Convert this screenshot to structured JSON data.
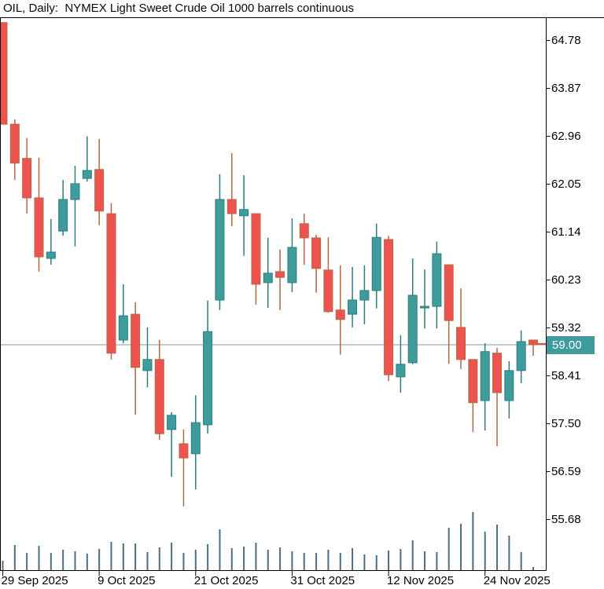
{
  "window": {
    "title": "OIL, Daily:  NYMEX Light Sweet Crude Oil 1000 barrels continuous"
  },
  "chart_data": {
    "type": "candlestick",
    "symbol": "OIL",
    "timeframe": "Daily",
    "title": "OIL, Daily:  NYMEX Light Sweet Crude Oil 1000 barrels continuous",
    "legend_position": "none",
    "grid": false,
    "ylim": [
      54.72,
      65.22
    ],
    "y_axis": {
      "side": "right",
      "ticks": [
        "64.78",
        "63.87",
        "62.96",
        "62.05",
        "61.14",
        "60.23",
        "59.32",
        "58.41",
        "57.50",
        "56.59",
        "55.68"
      ],
      "current_price": "59.00"
    },
    "x_axis": {
      "labels": [
        {
          "text": "29 Sep 2025",
          "index": 0
        },
        {
          "text": "9 Oct 2025",
          "index": 8
        },
        {
          "text": "21 Oct 2025",
          "index": 16
        },
        {
          "text": "31 Oct 2025",
          "index": 24
        },
        {
          "text": "12 Nov 2025",
          "index": 32
        },
        {
          "text": "24 Nov 2025",
          "index": 40
        }
      ]
    },
    "candles": [
      {
        "date": "29 Sep",
        "open": 65.12,
        "high": 65.12,
        "low": 63.19,
        "close": 63.19
      },
      {
        "date": "30 Sep",
        "open": 63.19,
        "high": 63.28,
        "low": 62.13,
        "close": 62.45
      },
      {
        "date": "1 Oct",
        "open": 62.54,
        "high": 62.93,
        "low": 61.49,
        "close": 61.79
      },
      {
        "date": "2 Oct",
        "open": 61.79,
        "high": 62.55,
        "low": 60.39,
        "close": 60.67
      },
      {
        "date": "3 Oct",
        "open": 60.64,
        "high": 61.39,
        "low": 60.52,
        "close": 60.76
      },
      {
        "date": "6 Oct",
        "open": 61.16,
        "high": 62.13,
        "low": 61.07,
        "close": 61.76
      },
      {
        "date": "7 Oct",
        "open": 61.76,
        "high": 62.4,
        "low": 60.87,
        "close": 62.06
      },
      {
        "date": "8 Oct",
        "open": 62.16,
        "high": 62.96,
        "low": 62.1,
        "close": 62.31
      },
      {
        "date": "9 Oct",
        "open": 62.33,
        "high": 62.91,
        "low": 61.27,
        "close": 61.54
      },
      {
        "date": "10 Oct",
        "open": 61.49,
        "high": 61.69,
        "low": 58.72,
        "close": 58.84
      },
      {
        "date": "13 Oct",
        "open": 59.09,
        "high": 60.15,
        "low": 59.03,
        "close": 59.55
      },
      {
        "date": "14 Oct",
        "open": 59.58,
        "high": 59.81,
        "low": 57.67,
        "close": 58.57
      },
      {
        "date": "15 Oct",
        "open": 58.51,
        "high": 59.33,
        "low": 58.19,
        "close": 58.72
      },
      {
        "date": "16 Oct",
        "open": 58.72,
        "high": 59.09,
        "low": 57.19,
        "close": 57.31
      },
      {
        "date": "17 Oct",
        "open": 57.39,
        "high": 57.72,
        "low": 56.49,
        "close": 57.66
      },
      {
        "date": "20 Oct",
        "open": 57.12,
        "high": 57.39,
        "low": 55.93,
        "close": 56.85
      },
      {
        "date": "21 Oct",
        "open": 56.93,
        "high": 58.04,
        "low": 56.25,
        "close": 57.52
      },
      {
        "date": "22 Oct",
        "open": 57.48,
        "high": 59.84,
        "low": 57.31,
        "close": 59.25
      },
      {
        "date": "23 Oct",
        "open": 59.85,
        "high": 62.24,
        "low": 59.66,
        "close": 61.76
      },
      {
        "date": "24 Oct",
        "open": 61.76,
        "high": 62.64,
        "low": 61.25,
        "close": 61.49
      },
      {
        "date": "27 Oct",
        "open": 61.45,
        "high": 62.22,
        "low": 60.69,
        "close": 61.57
      },
      {
        "date": "28 Oct",
        "open": 61.49,
        "high": 61.49,
        "low": 59.76,
        "close": 60.15
      },
      {
        "date": "29 Oct",
        "open": 60.18,
        "high": 61.03,
        "low": 59.7,
        "close": 60.36
      },
      {
        "date": "30 Oct",
        "open": 60.39,
        "high": 60.81,
        "low": 59.66,
        "close": 60.28
      },
      {
        "date": "31 Oct",
        "open": 60.18,
        "high": 61.4,
        "low": 60.0,
        "close": 60.85
      },
      {
        "date": "3 Nov",
        "open": 61.3,
        "high": 61.49,
        "low": 60.52,
        "close": 61.03
      },
      {
        "date": "4 Nov",
        "open": 61.03,
        "high": 61.09,
        "low": 59.99,
        "close": 60.45
      },
      {
        "date": "5 Nov",
        "open": 60.42,
        "high": 61.04,
        "low": 59.61,
        "close": 59.63
      },
      {
        "date": "6 Nov",
        "open": 59.66,
        "high": 60.51,
        "low": 58.81,
        "close": 59.48
      },
      {
        "date": "7 Nov",
        "open": 59.58,
        "high": 60.48,
        "low": 59.33,
        "close": 59.85
      },
      {
        "date": "10 Nov",
        "open": 59.85,
        "high": 60.51,
        "low": 59.39,
        "close": 60.03
      },
      {
        "date": "11 Nov",
        "open": 60.03,
        "high": 61.3,
        "low": 59.69,
        "close": 61.04
      },
      {
        "date": "12 Nov",
        "open": 61.0,
        "high": 61.07,
        "low": 58.31,
        "close": 58.43
      },
      {
        "date": "13 Nov",
        "open": 58.39,
        "high": 59.18,
        "low": 58.09,
        "close": 58.63
      },
      {
        "date": "14 Nov",
        "open": 58.66,
        "high": 60.64,
        "low": 58.63,
        "close": 59.94
      },
      {
        "date": "17 Nov",
        "open": 59.7,
        "high": 60.43,
        "low": 59.31,
        "close": 59.73
      },
      {
        "date": "18 Nov",
        "open": 59.73,
        "high": 60.96,
        "low": 59.31,
        "close": 60.73
      },
      {
        "date": "19 Nov",
        "open": 60.52,
        "high": 60.52,
        "low": 58.64,
        "close": 59.46
      },
      {
        "date": "20 Nov",
        "open": 59.33,
        "high": 60.07,
        "low": 58.54,
        "close": 58.72
      },
      {
        "date": "21 Nov",
        "open": 58.72,
        "high": 58.72,
        "low": 57.34,
        "close": 57.9
      },
      {
        "date": "24 Nov",
        "open": 57.94,
        "high": 59.03,
        "low": 57.37,
        "close": 58.87
      },
      {
        "date": "25 Nov",
        "open": 58.84,
        "high": 58.94,
        "low": 57.07,
        "close": 58.09
      },
      {
        "date": "26 Nov",
        "open": 57.94,
        "high": 58.69,
        "low": 57.6,
        "close": 58.51
      },
      {
        "date": "27 Nov",
        "open": 58.51,
        "high": 59.27,
        "low": 58.27,
        "close": 59.06
      },
      {
        "date": "28 Nov",
        "open": 59.09,
        "high": 59.09,
        "low": 58.79,
        "close": 59.0
      }
    ],
    "volumes_rel": [
      12,
      32,
      22,
      31,
      22,
      26,
      24,
      21,
      27,
      36,
      34,
      34,
      23,
      29,
      35,
      22,
      26,
      33,
      52,
      28,
      30,
      35,
      26,
      29,
      24,
      22,
      22,
      26,
      22,
      28,
      20,
      19,
      25,
      27,
      38,
      24,
      23,
      54,
      59,
      74,
      49,
      58,
      44,
      23,
      4
    ],
    "colors": {
      "bull_fill": "#3E9C9C",
      "bull_edge": "#2E7D7D",
      "bear_fill": "#EF5350",
      "bear_edge": "#B06A45",
      "volume_bar": "#4A7080",
      "price_line": "#7C9CB0",
      "last_close_tick": "#E05040",
      "axis": "#000000",
      "label_text": "#000000",
      "price_badge_bg": "#3E9C9C",
      "price_badge_text": "#FFFFFF",
      "background": "#FFFFFF"
    }
  }
}
